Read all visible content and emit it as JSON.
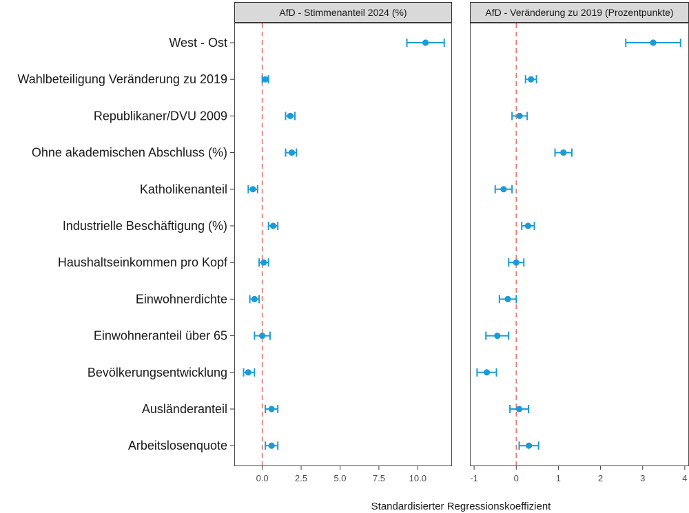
{
  "chart_data": {
    "type": "scatter",
    "xlabel": "Standardisierter Regressionskoeffizient",
    "categories": [
      "West - Ost",
      "Wahlbeteiligung Veränderung zu 2019",
      "Republikaner/DVU 2009",
      "Ohne akademischen Abschluss (%)",
      "Katholikenanteil",
      "Industrielle Beschäftigung (%)",
      "Haushaltseinkommen pro Kopf",
      "Einwohnerdichte",
      "Einwohneranteil über 65",
      "Bevölkerungsentwicklung",
      "Ausländeranteil",
      "Arbeitslosenquote"
    ],
    "panels": [
      {
        "title": "AfD - Stimmenanteil 2024 (%)",
        "xlim": [
          -1.8,
          12.2
        ],
        "xticks": [
          0,
          2.5,
          5,
          7.5,
          10
        ],
        "xtick_labels": [
          "0.0",
          "2.5",
          "5.0",
          "7.5",
          "10.0"
        ],
        "estimates": [
          10.5,
          0.2,
          1.8,
          1.9,
          -0.6,
          0.7,
          0.1,
          -0.5,
          0.0,
          -0.9,
          0.6,
          0.6
        ],
        "lower": [
          9.3,
          0.0,
          1.5,
          1.5,
          -0.9,
          0.4,
          -0.2,
          -0.8,
          -0.5,
          -1.2,
          0.2,
          0.2
        ],
        "upper": [
          11.7,
          0.4,
          2.1,
          2.2,
          -0.3,
          1.0,
          0.4,
          -0.2,
          0.5,
          -0.5,
          1.0,
          1.0
        ]
      },
      {
        "title": "AfD - Veränderung zu 2019 (Prozentpunkte)",
        "xlim": [
          -1.1,
          4.1
        ],
        "xticks": [
          -1,
          0,
          1,
          2,
          3,
          4
        ],
        "xtick_labels": [
          "-1",
          "0",
          "1",
          "2",
          "3",
          "4"
        ],
        "estimates": [
          3.25,
          0.35,
          0.08,
          1.12,
          -0.3,
          0.28,
          0.0,
          -0.2,
          -0.45,
          -0.7,
          0.07,
          0.3
        ],
        "lower": [
          2.6,
          0.22,
          -0.1,
          0.92,
          -0.5,
          0.13,
          -0.18,
          -0.4,
          -0.72,
          -0.93,
          -0.15,
          0.07
        ],
        "upper": [
          3.9,
          0.48,
          0.26,
          1.32,
          -0.1,
          0.43,
          0.18,
          0.0,
          -0.18,
          -0.47,
          0.29,
          0.53
        ]
      }
    ],
    "point_color": "#1a9bd7",
    "zero_line_color": "#e8766d",
    "grid": false
  }
}
